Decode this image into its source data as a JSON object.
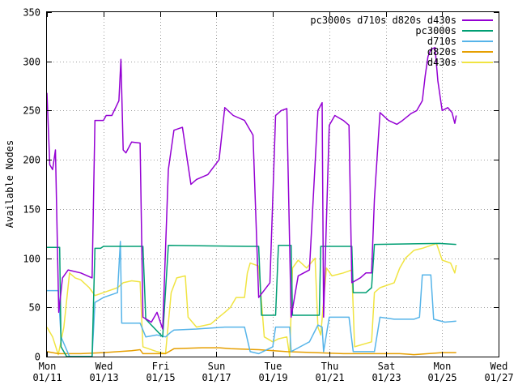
{
  "chart_data": {
    "type": "line",
    "title": "",
    "xlabel": "",
    "ylabel": "Available Nodes",
    "ylim": [
      0,
      350
    ],
    "yticks": [
      0,
      50,
      100,
      150,
      200,
      250,
      300,
      350
    ],
    "xlim": [
      0,
      16
    ],
    "xticks": [
      {
        "x": 0,
        "day": "Mon",
        "date": "01/11"
      },
      {
        "x": 2,
        "day": "Wed",
        "date": "01/13"
      },
      {
        "x": 4,
        "day": "Fri",
        "date": "01/15"
      },
      {
        "x": 6,
        "day": "Sun",
        "date": "01/17"
      },
      {
        "x": 8,
        "day": "Tue",
        "date": "01/19"
      },
      {
        "x": 10,
        "day": "Thu",
        "date": "01/21"
      },
      {
        "x": 12,
        "day": "Sat",
        "date": "01/23"
      },
      {
        "x": 14,
        "day": "Mon",
        "date": "01/25"
      },
      {
        "x": 16,
        "day": "Wed",
        "date": "01/27"
      }
    ],
    "grid": true,
    "legend_position": "top-right",
    "series": [
      {
        "name": "pc3000s d710s d820s d430s",
        "color": "#9400d3",
        "points": [
          [
            0,
            268
          ],
          [
            0.1,
            195
          ],
          [
            0.2,
            190
          ],
          [
            0.3,
            210
          ],
          [
            0.42,
            45
          ],
          [
            0.55,
            80
          ],
          [
            0.75,
            88
          ],
          [
            1.2,
            85
          ],
          [
            1.6,
            80
          ],
          [
            1.7,
            240
          ],
          [
            2.0,
            240
          ],
          [
            2.1,
            245
          ],
          [
            2.3,
            245
          ],
          [
            2.55,
            260
          ],
          [
            2.62,
            302
          ],
          [
            2.7,
            210
          ],
          [
            2.8,
            207
          ],
          [
            3.0,
            218
          ],
          [
            3.3,
            217
          ],
          [
            3.4,
            40
          ],
          [
            3.7,
            35
          ],
          [
            3.9,
            45
          ],
          [
            4.1,
            28
          ],
          [
            4.3,
            190
          ],
          [
            4.5,
            230
          ],
          [
            4.8,
            233
          ],
          [
            5.1,
            175
          ],
          [
            5.3,
            180
          ],
          [
            5.7,
            185
          ],
          [
            6.1,
            200
          ],
          [
            6.3,
            253
          ],
          [
            6.6,
            245
          ],
          [
            7.0,
            240
          ],
          [
            7.3,
            225
          ],
          [
            7.5,
            60
          ],
          [
            7.9,
            75
          ],
          [
            8.1,
            245
          ],
          [
            8.3,
            250
          ],
          [
            8.5,
            252
          ],
          [
            8.65,
            40
          ],
          [
            8.9,
            82
          ],
          [
            9.3,
            88
          ],
          [
            9.6,
            250
          ],
          [
            9.75,
            258
          ],
          [
            9.8,
            40
          ],
          [
            10.0,
            235
          ],
          [
            10.2,
            245
          ],
          [
            10.5,
            240
          ],
          [
            10.7,
            235
          ],
          [
            10.8,
            75
          ],
          [
            11.1,
            80
          ],
          [
            11.3,
            85
          ],
          [
            11.5,
            85
          ],
          [
            11.6,
            160
          ],
          [
            11.8,
            248
          ],
          [
            12.1,
            240
          ],
          [
            12.4,
            236
          ],
          [
            12.6,
            240
          ],
          [
            12.9,
            247
          ],
          [
            13.1,
            250
          ],
          [
            13.3,
            260
          ],
          [
            13.4,
            285
          ],
          [
            13.5,
            305
          ],
          [
            13.6,
            312
          ],
          [
            13.75,
            314
          ],
          [
            13.85,
            280
          ],
          [
            14.0,
            250
          ],
          [
            14.2,
            253
          ],
          [
            14.35,
            248
          ],
          [
            14.45,
            237
          ],
          [
            14.5,
            245
          ]
        ]
      },
      {
        "name": "pc3000s",
        "color": "#009e73",
        "points": [
          [
            0,
            111
          ],
          [
            0.45,
            111
          ],
          [
            0.5,
            10
          ],
          [
            0.7,
            0
          ],
          [
            1.2,
            0
          ],
          [
            1.6,
            0
          ],
          [
            1.7,
            110
          ],
          [
            1.9,
            110
          ],
          [
            2.0,
            112
          ],
          [
            3.4,
            112
          ],
          [
            3.5,
            38
          ],
          [
            4.1,
            20
          ],
          [
            4.3,
            113
          ],
          [
            7.1,
            112
          ],
          [
            7.5,
            112
          ],
          [
            7.6,
            42
          ],
          [
            8.1,
            42
          ],
          [
            8.2,
            113
          ],
          [
            8.65,
            113
          ],
          [
            8.7,
            42
          ],
          [
            9.65,
            42
          ],
          [
            9.7,
            112
          ],
          [
            10.0,
            112
          ],
          [
            10.8,
            112
          ],
          [
            10.85,
            65
          ],
          [
            11.3,
            65
          ],
          [
            11.5,
            70
          ],
          [
            11.6,
            114
          ],
          [
            13.9,
            115
          ],
          [
            14.5,
            114
          ]
        ]
      },
      {
        "name": "d710s",
        "color": "#56b4e9",
        "points": [
          [
            0,
            67
          ],
          [
            0.4,
            67
          ],
          [
            0.5,
            20
          ],
          [
            0.8,
            0
          ],
          [
            1.2,
            0
          ],
          [
            1.6,
            0
          ],
          [
            1.7,
            55
          ],
          [
            2.0,
            60
          ],
          [
            2.5,
            65
          ],
          [
            2.6,
            117
          ],
          [
            2.65,
            34
          ],
          [
            3.3,
            34
          ],
          [
            3.5,
            20
          ],
          [
            3.9,
            22
          ],
          [
            4.2,
            20
          ],
          [
            4.4,
            25
          ],
          [
            4.5,
            27
          ],
          [
            5.3,
            28
          ],
          [
            6.3,
            30
          ],
          [
            7.0,
            30
          ],
          [
            7.2,
            5
          ],
          [
            7.5,
            3
          ],
          [
            8.0,
            10
          ],
          [
            8.1,
            30
          ],
          [
            8.6,
            30
          ],
          [
            8.65,
            5
          ],
          [
            9.3,
            15
          ],
          [
            9.6,
            32
          ],
          [
            9.75,
            30
          ],
          [
            9.8,
            5
          ],
          [
            10.0,
            40
          ],
          [
            10.7,
            40
          ],
          [
            10.85,
            5
          ],
          [
            11.6,
            5
          ],
          [
            11.8,
            40
          ],
          [
            12.3,
            38
          ],
          [
            12.6,
            38
          ],
          [
            13.0,
            38
          ],
          [
            13.2,
            40
          ],
          [
            13.3,
            83
          ],
          [
            13.6,
            83
          ],
          [
            13.7,
            38
          ],
          [
            14.1,
            35
          ],
          [
            14.5,
            36
          ]
        ]
      },
      {
        "name": "d820s",
        "color": "#e69f00",
        "points": [
          [
            0,
            5
          ],
          [
            0.4,
            3
          ],
          [
            1.2,
            3
          ],
          [
            2.0,
            4
          ],
          [
            3.0,
            6
          ],
          [
            3.3,
            7
          ],
          [
            3.4,
            3
          ],
          [
            4.2,
            3
          ],
          [
            4.5,
            8
          ],
          [
            5.5,
            9
          ],
          [
            6.1,
            9
          ],
          [
            6.5,
            8
          ],
          [
            7.5,
            7
          ],
          [
            8.5,
            5
          ],
          [
            9.5,
            4
          ],
          [
            10.5,
            3
          ],
          [
            11.5,
            3
          ],
          [
            12.5,
            3
          ],
          [
            13.0,
            2
          ],
          [
            14.0,
            4
          ],
          [
            14.5,
            4
          ]
        ]
      },
      {
        "name": "d430s",
        "color": "#f0e442",
        "points": [
          [
            0,
            30
          ],
          [
            0.2,
            20
          ],
          [
            0.4,
            2
          ],
          [
            0.6,
            30
          ],
          [
            0.8,
            85
          ],
          [
            1.0,
            80
          ],
          [
            1.2,
            78
          ],
          [
            1.5,
            70
          ],
          [
            1.7,
            62
          ],
          [
            2.0,
            65
          ],
          [
            2.5,
            70
          ],
          [
            2.7,
            75
          ],
          [
            3.0,
            77
          ],
          [
            3.3,
            76
          ],
          [
            3.4,
            10
          ],
          [
            3.9,
            5
          ],
          [
            4.2,
            3
          ],
          [
            4.4,
            65
          ],
          [
            4.6,
            80
          ],
          [
            4.9,
            82
          ],
          [
            5.0,
            40
          ],
          [
            5.3,
            30
          ],
          [
            5.8,
            33
          ],
          [
            6.0,
            38
          ],
          [
            6.3,
            45
          ],
          [
            6.5,
            50
          ],
          [
            6.7,
            60
          ],
          [
            6.9,
            60
          ],
          [
            7.0,
            60
          ],
          [
            7.1,
            85
          ],
          [
            7.2,
            95
          ],
          [
            7.5,
            92
          ],
          [
            7.7,
            20
          ],
          [
            8.0,
            15
          ],
          [
            8.2,
            18
          ],
          [
            8.5,
            20
          ],
          [
            8.6,
            0
          ],
          [
            8.7,
            90
          ],
          [
            8.9,
            98
          ],
          [
            9.2,
            90
          ],
          [
            9.5,
            100
          ],
          [
            9.6,
            30
          ],
          [
            9.7,
            22
          ],
          [
            9.9,
            90
          ],
          [
            10.1,
            82
          ],
          [
            10.5,
            85
          ],
          [
            10.8,
            88
          ],
          [
            10.9,
            10
          ],
          [
            11.5,
            15
          ],
          [
            11.6,
            65
          ],
          [
            11.8,
            70
          ],
          [
            12.3,
            75
          ],
          [
            12.5,
            90
          ],
          [
            12.7,
            100
          ],
          [
            13.0,
            108
          ],
          [
            13.3,
            110
          ],
          [
            13.8,
            115
          ],
          [
            14.0,
            98
          ],
          [
            14.3,
            95
          ],
          [
            14.45,
            85
          ],
          [
            14.5,
            93
          ]
        ]
      }
    ]
  }
}
